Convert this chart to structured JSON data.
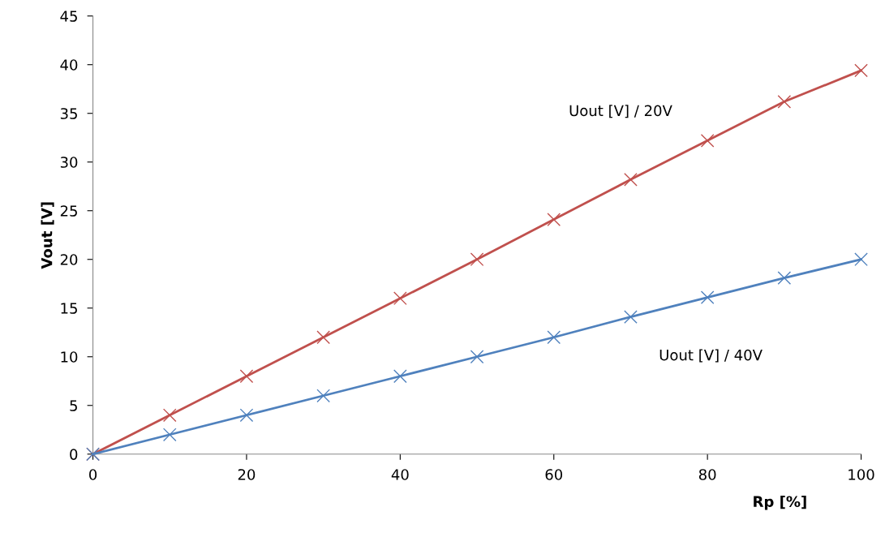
{
  "chart_data": {
    "type": "line",
    "xlabel": "Rp [%]",
    "ylabel": "Vout [V]",
    "x": [
      0,
      10,
      20,
      30,
      40,
      50,
      60,
      70,
      80,
      90,
      100
    ],
    "series": [
      {
        "name": "Uout [V] / 20V",
        "color": "#c0504d",
        "values": [
          0,
          4,
          8,
          12,
          16,
          20,
          24.1,
          28.2,
          32.2,
          36.2,
          39.4
        ]
      },
      {
        "name": "Uout [V] / 40V",
        "color": "#4f81bd",
        "values": [
          0,
          2,
          4,
          6,
          8,
          10,
          12,
          14.1,
          16.1,
          18.1,
          20
        ]
      }
    ],
    "xlim": [
      0,
      100
    ],
    "xticks": [
      0,
      20,
      40,
      60,
      80,
      100
    ],
    "ylim": [
      0,
      45
    ],
    "yticks": [
      0,
      5,
      10,
      15,
      20,
      25,
      30,
      35,
      40,
      45
    ],
    "grid": false,
    "legend": false,
    "marker": "cross",
    "line_style": "solid"
  }
}
